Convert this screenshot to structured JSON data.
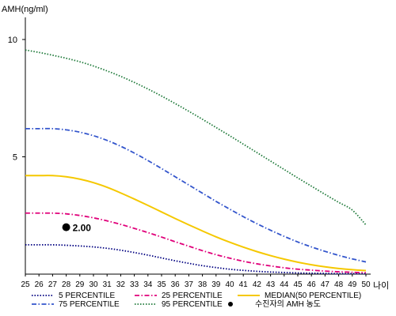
{
  "chart_data": {
    "type": "line",
    "title": "",
    "ylabel": "AMH(ng/ml)",
    "xlabel": "나이",
    "x": [
      25,
      26,
      27,
      28,
      29,
      30,
      31,
      32,
      33,
      34,
      35,
      36,
      37,
      38,
      39,
      40,
      41,
      42,
      43,
      44,
      45,
      46,
      47,
      48,
      49,
      50
    ],
    "x_tick_labels": [
      "25",
      "26",
      "27",
      "28",
      "29",
      "30",
      "31",
      "32",
      "33",
      "34",
      "35",
      "36",
      "37",
      "38",
      "39",
      "40",
      "41",
      "42",
      "43",
      "44",
      "45",
      "46",
      "47",
      "48",
      "49",
      "50"
    ],
    "xlim": [
      25,
      50
    ],
    "ylim": [
      0,
      11
    ],
    "y_ticks": [
      5,
      10
    ],
    "y_tick_labels": [
      "5",
      "10"
    ],
    "grid": false,
    "series": [
      {
        "name": "5 PERCENTILE",
        "color": "#000080",
        "style": "dotted",
        "values": [
          1.25,
          1.25,
          1.25,
          1.23,
          1.2,
          1.16,
          1.1,
          1.02,
          0.92,
          0.81,
          0.69,
          0.57,
          0.46,
          0.36,
          0.28,
          0.21,
          0.16,
          0.12,
          0.09,
          0.07,
          0.05,
          0.04,
          0.03,
          0.02,
          0.02,
          0.02
        ]
      },
      {
        "name": "25 PERCENTILE",
        "color": "#e0007a",
        "style": "dashdot",
        "values": [
          2.6,
          2.6,
          2.6,
          2.57,
          2.5,
          2.4,
          2.27,
          2.12,
          1.95,
          1.77,
          1.58,
          1.38,
          1.19,
          1.0,
          0.83,
          0.68,
          0.55,
          0.44,
          0.35,
          0.27,
          0.21,
          0.17,
          0.13,
          0.1,
          0.08,
          0.06
        ]
      },
      {
        "name": "MEDIAN(50 PERCENTILE)",
        "color": "#f5c800",
        "style": "solid",
        "values": [
          4.2,
          4.2,
          4.2,
          4.15,
          4.05,
          3.9,
          3.7,
          3.46,
          3.2,
          2.93,
          2.65,
          2.37,
          2.1,
          1.84,
          1.59,
          1.36,
          1.15,
          0.96,
          0.79,
          0.64,
          0.51,
          0.4,
          0.31,
          0.24,
          0.19,
          0.15
        ]
      },
      {
        "name": "75 PERCENTILE",
        "color": "#3355cc",
        "style": "dashdot",
        "values": [
          6.2,
          6.2,
          6.2,
          6.15,
          6.05,
          5.9,
          5.7,
          5.45,
          5.16,
          4.84,
          4.5,
          4.15,
          3.8,
          3.45,
          3.1,
          2.77,
          2.45,
          2.15,
          1.87,
          1.61,
          1.37,
          1.16,
          0.97,
          0.8,
          0.65,
          0.52
        ]
      },
      {
        "name": "95 PERCENTILE",
        "color": "#1f7a3a",
        "style": "dotted",
        "values": [
          9.55,
          9.45,
          9.33,
          9.2,
          9.05,
          8.87,
          8.66,
          8.43,
          8.17,
          7.89,
          7.59,
          7.27,
          6.94,
          6.6,
          6.25,
          5.9,
          5.54,
          5.18,
          4.82,
          4.46,
          4.1,
          3.75,
          3.4,
          3.06,
          2.73,
          2.1
        ]
      }
    ],
    "marker": {
      "name": "수진자의 AMH 농도",
      "x": 28,
      "y": 2.0,
      "label": "2.00",
      "color": "#000000"
    },
    "legend": {
      "position": "bottom",
      "items": [
        {
          "label": "5 PERCENTILE",
          "color": "#000080",
          "style": "dotted"
        },
        {
          "label": "25 PERCENTILE",
          "color": "#e0007a",
          "style": "dashdot"
        },
        {
          "label": "MEDIAN(50 PERCENTILE)",
          "color": "#f5c800",
          "style": "solid"
        },
        {
          "label": "75 PERCENTILE",
          "color": "#3355cc",
          "style": "dashdot"
        },
        {
          "label": "95 PERCENTILE",
          "color": "#1f7a3a",
          "style": "dotted"
        },
        {
          "label": "수진자의 AMH 농도",
          "color": "#000000",
          "style": "dot"
        }
      ]
    }
  }
}
